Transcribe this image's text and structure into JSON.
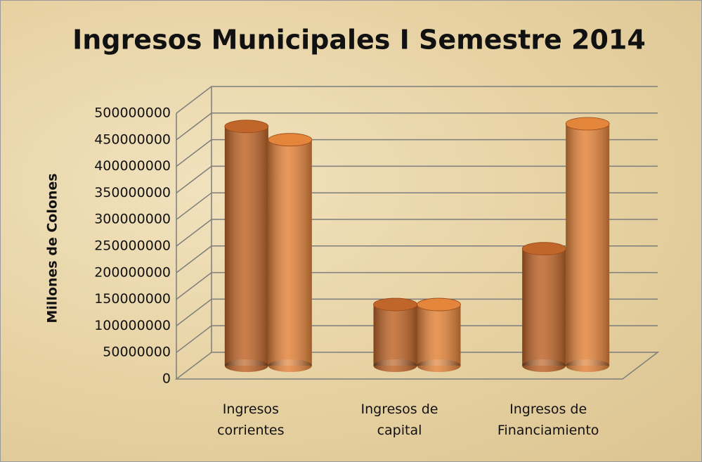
{
  "chart_data": {
    "type": "bar3d",
    "title": "Ingresos Municipales I Semestre 2014",
    "y_label": "Millones de Colones",
    "categories": [
      "Ingresos corrientes",
      "Ingresos de capital",
      "Ingresos de Financiamiento"
    ],
    "series": [
      {
        "color": "#c0662a",
        "values": [
          450000000,
          115000000,
          220000000
        ]
      },
      {
        "color": "#e4853c",
        "values": [
          425000000,
          115000000,
          455000000
        ]
      }
    ],
    "ylim": [
      0,
      500000000
    ],
    "yticks": [
      0,
      50000000,
      100000000,
      150000000,
      200000000,
      250000000,
      300000000,
      350000000,
      400000000,
      450000000,
      500000000
    ],
    "grid": true
  }
}
